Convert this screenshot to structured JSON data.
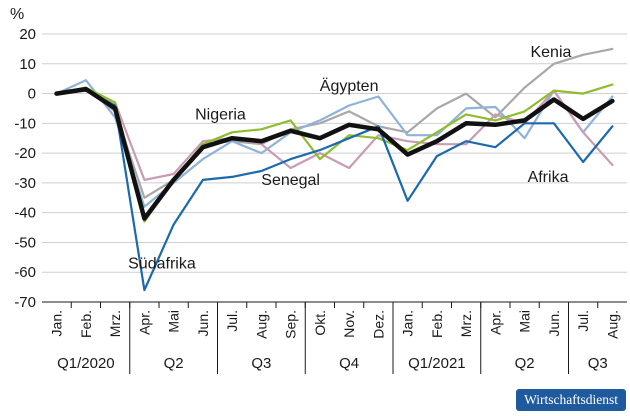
{
  "chart_data": {
    "type": "line",
    "unit": "%",
    "ylim": [
      -70,
      20
    ],
    "yticks": [
      20,
      10,
      0,
      -10,
      -20,
      -30,
      -40,
      -50,
      -60,
      -70
    ],
    "grid": true,
    "categories": [
      "Jan.",
      "Feb.",
      "Mrz.",
      "Apr.",
      "Mai",
      "Jun.",
      "Jul.",
      "Aug.",
      "Sep.",
      "Okt.",
      "Nov.",
      "Dez.",
      "Jan.",
      "Feb.",
      "Mrz.",
      "Apr.",
      "Mai",
      "Jun.",
      "Jul.",
      "Aug."
    ],
    "groups": [
      {
        "label": "Q1/2020",
        "span": [
          0,
          2
        ]
      },
      {
        "label": "Q2",
        "span": [
          3,
          5
        ]
      },
      {
        "label": "Q3",
        "span": [
          6,
          8
        ]
      },
      {
        "label": "Q4",
        "span": [
          9,
          11
        ]
      },
      {
        "label": "Q1/2021",
        "span": [
          12,
          14
        ]
      },
      {
        "label": "Q2",
        "span": [
          15,
          17
        ]
      },
      {
        "label": "Q3",
        "span": [
          18,
          19
        ]
      }
    ],
    "series": [
      {
        "name": "Kenia",
        "color": "#a8a8a8",
        "width": 2.2,
        "values": [
          0,
          2,
          -6,
          -35,
          -29,
          -17,
          -16,
          -17,
          -12,
          -10,
          -6,
          -11,
          -13,
          -5,
          0,
          -8,
          2,
          10,
          13,
          15
        ]
      },
      {
        "name": "",
        "color": "#8fb2d8",
        "width": 2.2,
        "values": [
          0,
          4.5,
          -8,
          -38,
          -30,
          -22,
          -16,
          -20,
          -13,
          -9,
          -4,
          -1,
          -14,
          -14,
          -5,
          -4.5,
          -15,
          1,
          -13,
          -1
        ]
      },
      {
        "name": "",
        "color": "#c99bb4",
        "width": 2.2,
        "values": [
          0,
          1,
          -3,
          -29,
          -27,
          -16,
          -15,
          -17,
          -25,
          -20,
          -25,
          -14,
          -16,
          -17,
          -17,
          -7,
          -10,
          1,
          -13,
          -24
        ]
      },
      {
        "name": "Nigeria",
        "color": "#8ebd2d",
        "width": 2.2,
        "values": [
          0,
          2,
          -3,
          -43,
          -29,
          -17,
          -13,
          -12,
          -9,
          -22,
          -14,
          -15,
          -19,
          -13,
          -7,
          -9,
          -6,
          1,
          0,
          3
        ]
      },
      {
        "name": "Südafrika",
        "color": "#1a6aad",
        "width": 2.2,
        "values": [
          0,
          1,
          -4,
          -66,
          -44,
          -29,
          -28,
          -26,
          -22,
          -19,
          -15,
          -11,
          -36,
          -21,
          -16,
          -18,
          -10,
          -10,
          -23,
          -11
        ]
      },
      {
        "name": "",
        "color": "#111111",
        "width": 4.5,
        "values": [
          0,
          1.5,
          -5,
          -42,
          -29,
          -18,
          -15,
          -16,
          -12.5,
          -15,
          -10.5,
          -12,
          -20.5,
          -16,
          -10,
          -10.5,
          -9,
          -2,
          -8.5,
          -2.5
        ]
      }
    ],
    "labels": [
      {
        "text": "Kenia",
        "index": 16.9,
        "value": 14
      },
      {
        "text": "Ägypten",
        "index": 10.0,
        "value": 2.5
      },
      {
        "text": "Nigeria",
        "index": 5.6,
        "value": -7
      },
      {
        "text": "Senegal",
        "index": 8.0,
        "value": -29
      },
      {
        "text": "Afrika",
        "index": 16.8,
        "value": -28
      },
      {
        "text": "Südafrika",
        "index": 3.6,
        "value": -57
      }
    ]
  },
  "footer": {
    "brand": "Wirtschaftsdienst"
  }
}
